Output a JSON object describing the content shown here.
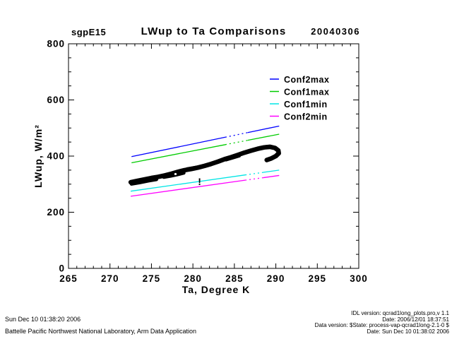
{
  "header": {
    "site": "sgpE15",
    "title": "LWup to Ta Comparisons",
    "date": "20040306"
  },
  "footer": {
    "left_line1": "Sun Dec 10 01:38:20 2006",
    "left_line2": "Battelle Pacific Northwest National Laboratory, Arm Data Application",
    "right_lines": [
      "IDL version: qcrad1long_plots.pro,v 1.1",
      "Date: 2006/12/01 18:37:51",
      "Data version: $State: process-vap-qcrad1long-2.1-0 $",
      "Date: Sun Dec 10 01:38:02 2006"
    ]
  },
  "chart_data": {
    "type": "scatter",
    "title": "LWup to Ta Comparisons",
    "xlabel": "Ta, Degree K",
    "ylabel": "LWup, W/m²",
    "xlim": [
      265,
      300
    ],
    "ylim": [
      0,
      800
    ],
    "x_major_ticks": [
      265,
      270,
      275,
      280,
      285,
      290,
      295,
      300
    ],
    "y_major_ticks": [
      0,
      200,
      400,
      600,
      800
    ],
    "x_minor_step": 1,
    "y_minor_step": 50,
    "grid": false,
    "axis_color": "#000000",
    "legend": {
      "position": "upper-right-inside",
      "entries": [
        {
          "label": "Conf2max",
          "color": "#0000ff"
        },
        {
          "label": "Conf1max",
          "color": "#00cc00"
        },
        {
          "label": "Conf1min",
          "color": "#00e5e5"
        },
        {
          "label": "Conf2min",
          "color": "#ff00ff"
        }
      ]
    },
    "series": [
      {
        "name": "Conf2max",
        "type": "line",
        "color": "#0000ff",
        "x": [
          272.6,
          290.4
        ],
        "y": [
          398,
          507
        ],
        "gap": [
          283.9,
          286.6
        ]
      },
      {
        "name": "Conf1max",
        "type": "line",
        "color": "#00cc00",
        "x": [
          272.6,
          290.4
        ],
        "y": [
          376,
          478
        ],
        "gap": [
          283.9,
          286.6
        ]
      },
      {
        "name": "Conf1min",
        "type": "line",
        "color": "#00e5e5",
        "x": [
          272.5,
          290.4
        ],
        "y": [
          275,
          350
        ],
        "gap": [
          286.3,
          288.5
        ]
      },
      {
        "name": "Conf2min",
        "type": "line",
        "color": "#ff00ff",
        "x": [
          272.5,
          290.4
        ],
        "y": [
          257,
          331
        ],
        "gap": [
          286.3,
          288.5
        ]
      },
      {
        "name": "LWup-measurements",
        "type": "band",
        "color": "#000000",
        "width": 6.5,
        "points": [
          [
            272.5,
            307
          ],
          [
            273.3,
            312
          ],
          [
            274.2,
            317
          ],
          [
            275.0,
            322
          ],
          [
            275.8,
            326
          ],
          [
            276.6,
            331
          ],
          [
            277.4,
            337
          ],
          [
            278.2,
            344
          ],
          [
            279.0,
            350
          ],
          [
            279.8,
            354
          ],
          [
            280.6,
            359
          ],
          [
            281.4,
            365
          ],
          [
            282.2,
            372
          ],
          [
            283.0,
            380
          ],
          [
            283.8,
            389
          ],
          [
            284.6,
            396
          ],
          [
            285.4,
            404
          ],
          [
            286.2,
            412
          ],
          [
            287.0,
            419
          ],
          [
            287.8,
            426
          ],
          [
            288.6,
            431
          ],
          [
            289.3,
            433
          ],
          [
            289.9,
            429
          ],
          [
            290.3,
            420
          ],
          [
            290.35,
            410
          ],
          [
            290.0,
            400
          ],
          [
            289.4,
            391
          ],
          [
            288.9,
            386
          ]
        ],
        "extra_strokes": [
          {
            "w": 5,
            "pts": [
              [
                272.6,
                301
              ],
              [
                273.6,
                306
              ],
              [
                274.6,
                312
              ],
              [
                275.6,
                317
              ]
            ]
          },
          {
            "w": 5,
            "pts": [
              [
                276.5,
                325
              ],
              [
                277.3,
                329
              ],
              [
                278.1,
                334
              ],
              [
                278.9,
                340
              ]
            ]
          },
          {
            "w": 5,
            "pts": [
              [
                279.3,
                354
              ],
              [
                280.1,
                358
              ],
              [
                280.9,
                362
              ]
            ]
          },
          {
            "w": 4,
            "pts": [
              [
                284.0,
                386
              ],
              [
                284.8,
                393
              ],
              [
                285.6,
                400
              ]
            ]
          },
          {
            "w": 5,
            "pts": [
              [
                288.0,
                429
              ],
              [
                288.8,
                433
              ],
              [
                289.4,
                434
              ]
            ]
          }
        ],
        "hole": {
          "x": 277.9,
          "y": 336,
          "r": 1.6
        }
      },
      {
        "name": "outlier-flag",
        "type": "marker",
        "glyph": "!",
        "color": "#000000",
        "x": 280.8,
        "y_baseline": 297
      }
    ]
  }
}
